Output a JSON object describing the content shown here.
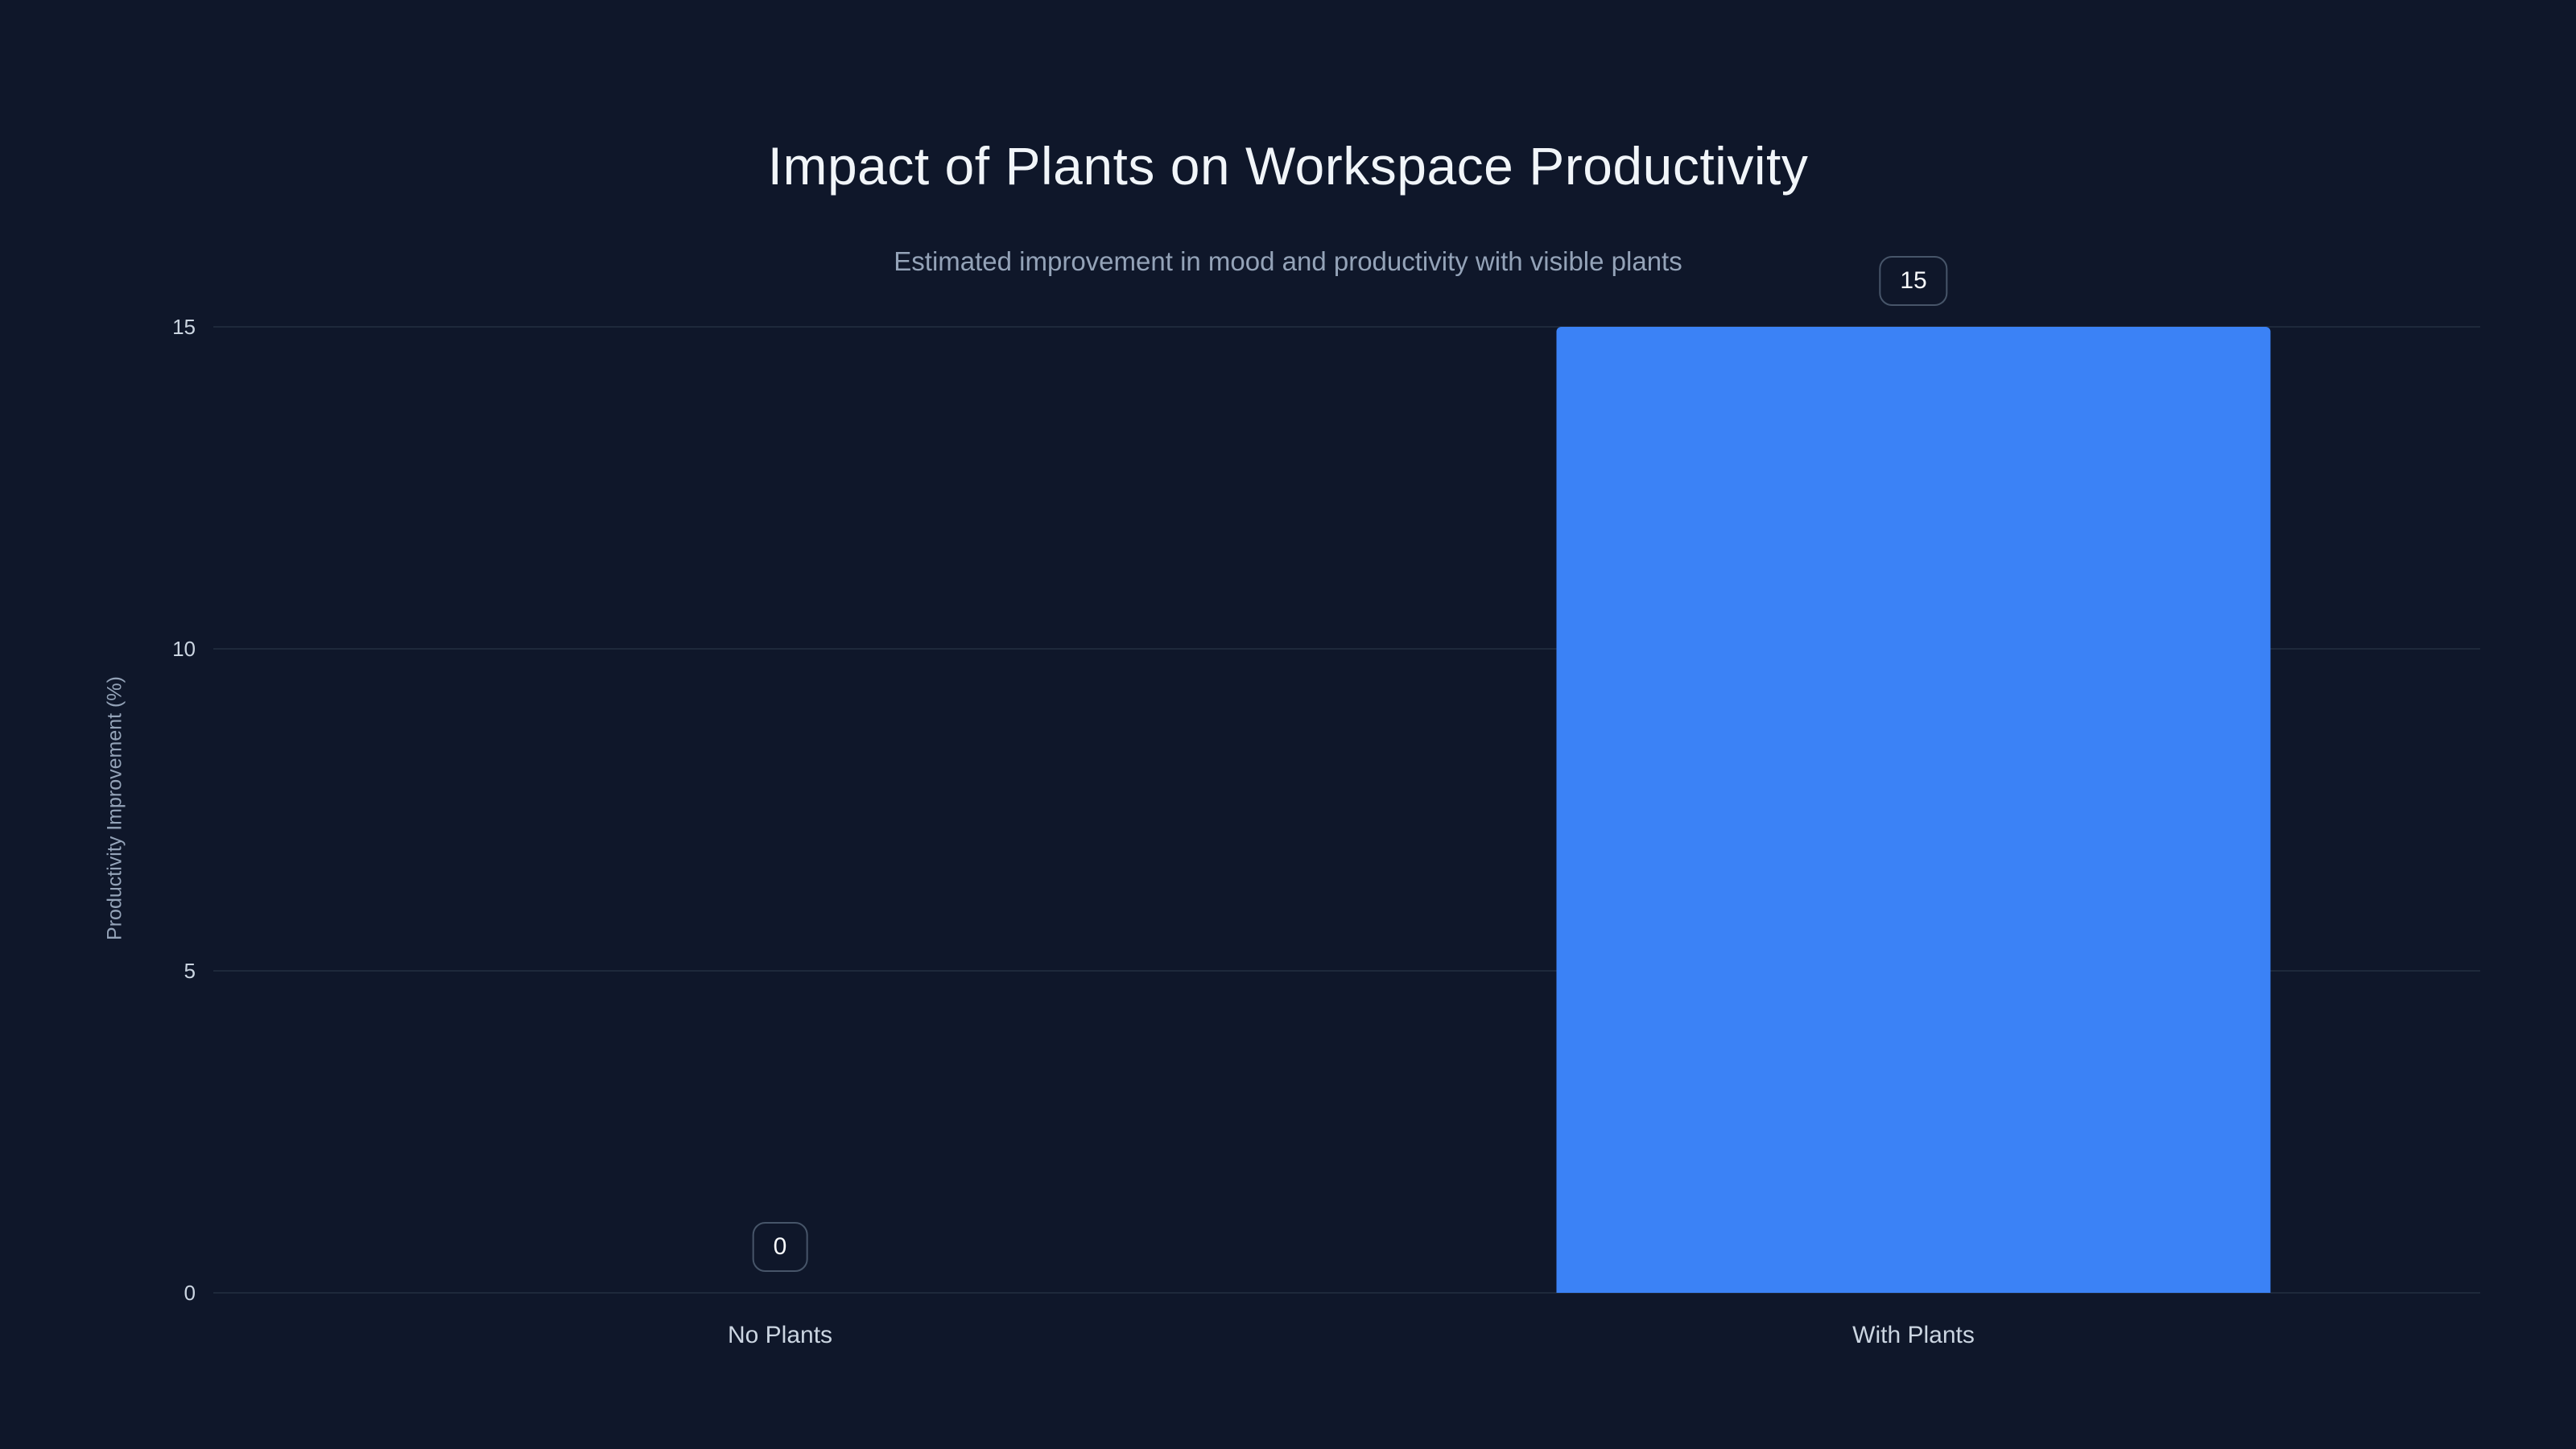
{
  "chart_data": {
    "type": "bar",
    "title": "Impact of Plants on Workspace Productivity",
    "subtitle": "Estimated improvement in mood and productivity with visible plants",
    "categories": [
      "No Plants",
      "With Plants"
    ],
    "values": [
      0,
      15
    ],
    "value_labels": [
      "0",
      "15"
    ],
    "xlabel": "",
    "ylabel": "Productivity Improvement (%)",
    "ylim": [
      0,
      15
    ],
    "yticks": [
      0,
      5,
      10,
      15
    ],
    "grid": true,
    "legend": false,
    "bar_color": "#3b82f6",
    "bar_band_fraction": 0.63,
    "colors": {
      "background": "#0f172a",
      "title": "#f1f5f9",
      "subtitle": "#94a3b8",
      "tick_label": "#cbd5e1",
      "gridline": "#1e293b",
      "badge_border": "#475569",
      "badge_text": "#f8fafc"
    }
  }
}
